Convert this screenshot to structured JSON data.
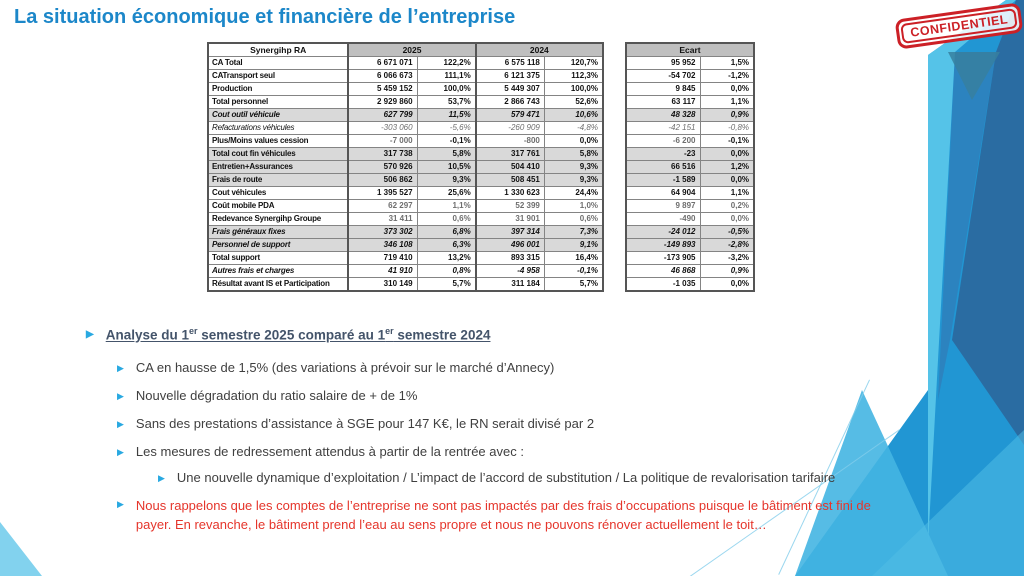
{
  "title": "La situation économique et financière de l’entreprise",
  "stamp": "CONFIDENTIEL",
  "table": {
    "corner_header": "Synergihp RA",
    "year_2025": "2025",
    "year_2024": "2024",
    "ecart_header": "Ecart",
    "rows": [
      {
        "label": "CA Total",
        "v25": "6 671 071",
        "p25": "122,2%",
        "v24": "6 575 118",
        "p24": "120,7%",
        "ev": "95 952",
        "ep": "1,5%",
        "style": "b"
      },
      {
        "label": "CATransport seul",
        "v25": "6 066 673",
        "p25": "111,1%",
        "v24": "6 121 375",
        "p24": "112,3%",
        "ev": "-54 702",
        "ep": "-1,2%",
        "style": "b"
      },
      {
        "label": "Production",
        "v25": "5 459 152",
        "p25": "100,0%",
        "v24": "5 449 307",
        "p24": "100,0%",
        "ev": "9 845",
        "ep": "0,0%",
        "style": "b"
      },
      {
        "label": "Total personnel",
        "v25": "2 929 860",
        "p25": "53,7%",
        "v24": "2 866 743",
        "p24": "52,6%",
        "ev": "63 117",
        "ep": "1,1%",
        "style": "b"
      },
      {
        "label": "Cout outil véhicule",
        "v25": "627 799",
        "p25": "11,5%",
        "v24": "579 471",
        "p24": "10,6%",
        "ev": "48 328",
        "ep": "0,9%",
        "style": "bi-sh"
      },
      {
        "label": "Refacturations véhicules",
        "v25": "-303 060",
        "p25": "-5,6%",
        "v24": "-260 909",
        "p24": "-4,8%",
        "ev": "-42 151",
        "ep": "-0,8%",
        "style": "i-mut"
      },
      {
        "label": "Plus/Moins values cession",
        "v25": "-7 000",
        "p25": "-0,1%",
        "v24": "-800",
        "p24": "0,0%",
        "ev": "-6 200",
        "ep": "-0,1%",
        "style": "mix"
      },
      {
        "label": "Total cout fin véhicules",
        "v25": "317 738",
        "p25": "5,8%",
        "v24": "317 761",
        "p24": "5,8%",
        "ev": "-23",
        "ep": "0,0%",
        "style": "b-sh"
      },
      {
        "label": "Entretien+Assurances",
        "v25": "570 926",
        "p25": "10,5%",
        "v24": "504 410",
        "p24": "9,3%",
        "ev": "66 516",
        "ep": "1,2%",
        "style": "b-sh"
      },
      {
        "label": "Frais de route",
        "v25": "506 862",
        "p25": "9,3%",
        "v24": "508 451",
        "p24": "9,3%",
        "ev": "-1 589",
        "ep": "0,0%",
        "style": "b-sh"
      },
      {
        "label": "Cout véhicules",
        "v25": "1 395 527",
        "p25": "25,6%",
        "v24": "1 330 623",
        "p24": "24,4%",
        "ev": "64 904",
        "ep": "1,1%",
        "style": "b"
      },
      {
        "label": "Coût mobile PDA",
        "v25": "62 297",
        "p25": "1,1%",
        "v24": "52 399",
        "p24": "1,0%",
        "ev": "9 897",
        "ep": "0,2%",
        "style": "b-mut"
      },
      {
        "label": "Redevance Synergihp Groupe",
        "v25": "31 411",
        "p25": "0,6%",
        "v24": "31 901",
        "p24": "0,6%",
        "ev": "-490",
        "ep": "0,0%",
        "style": "b-mut"
      },
      {
        "label": "Frais généraux fixes",
        "v25": "373 302",
        "p25": "6,8%",
        "v24": "397 314",
        "p24": "7,3%",
        "ev": "-24 012",
        "ep": "-0,5%",
        "style": "bi-sh"
      },
      {
        "label": "Personnel de support",
        "v25": "346 108",
        "p25": "6,3%",
        "v24": "496 001",
        "p24": "9,1%",
        "ev": "-149 893",
        "ep": "-2,8%",
        "style": "bi-sh"
      },
      {
        "label": "Total support",
        "v25": "719 410",
        "p25": "13,2%",
        "v24": "893 315",
        "p24": "16,4%",
        "ev": "-173 905",
        "ep": "-3,2%",
        "style": "b"
      },
      {
        "label": "Autres frais et charges",
        "v25": "41 910",
        "p25": "0,8%",
        "v24": "-4 958",
        "p24": "-0,1%",
        "ev": "46 868",
        "ep": "0,9%",
        "style": "bi"
      },
      {
        "label": "Résultat avant IS et Participation",
        "v25": "310 149",
        "p25": "5,7%",
        "v24": "311 184",
        "p24": "5,7%",
        "ev": "-1 035",
        "ep": "0,0%",
        "style": "b"
      }
    ]
  },
  "analysis": {
    "heading": {
      "pre": "Analyse du 1",
      "sup1": "er",
      "mid": " semestre 2025 comparé au 1",
      "sup2": "er",
      "post": " semestre 2024"
    },
    "bullets": [
      "CA en hausse de 1,5% (des variations à prévoir sur le marché d’Annecy)",
      "Nouvelle dégradation du ratio salaire de + de 1%",
      "Sans des prestations d’assistance à SGE pour 147 K€, le RN serait divisé par 2",
      "Les mesures de redressement attendus à partir de la rentrée avec :"
    ],
    "sub_bullet": "Une nouvelle dynamique d’exploitation / L’impact de l’accord de substitution / La politique de revalorisation tarifaire",
    "warning": {
      "line1": "Nous rappelons que les comptes de l’entreprise ne sont pas impactés par des frais d’occupations puisque le bâtiment est fini de",
      "line2": "payer. En revanche, le bâtiment prend l’eau au sens propre et nous ne pouvons rénover actuellement le toit…"
    }
  },
  "colors": {
    "accent_blue": "#1C87C9",
    "bullet_blue": "#29A9E1",
    "warning_red": "#E5352B",
    "stamp_red": "#CC2026",
    "heading_slate": "#44546A",
    "row_shade": "#D9D9D9",
    "header_shade": "#BFBFBF"
  }
}
